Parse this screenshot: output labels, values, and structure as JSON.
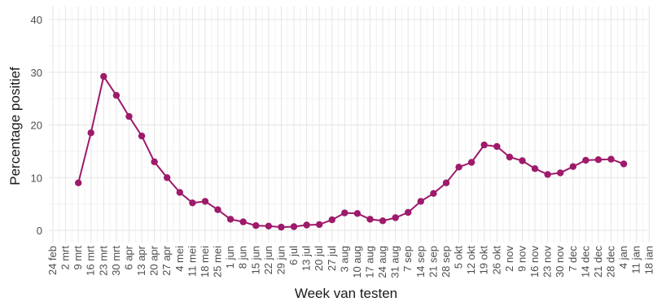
{
  "chart_data": {
    "type": "line",
    "title": "",
    "xlabel": "Week van testen",
    "ylabel": "Percentage positief",
    "ylim": [
      0,
      40
    ],
    "yticks": [
      0,
      10,
      20,
      30,
      40
    ],
    "grid": true,
    "legend": "none",
    "line_color": "#9e1a6a",
    "x_tick_labels": [
      "24 feb",
      "2 mrt",
      "9 mrt",
      "16 mrt",
      "23 mrt",
      "30 mrt",
      "6 apr",
      "13 apr",
      "20 apr",
      "27 apr",
      "4 mei",
      "11 mei",
      "18 mei",
      "25 mei",
      "1 jun",
      "8 jun",
      "15 jun",
      "22 jun",
      "29 jun",
      "6 jul",
      "13 jul",
      "20 jul",
      "27 jul",
      "3 aug",
      "10 aug",
      "17 aug",
      "24 aug",
      "31 aug",
      "7 sep",
      "14 sep",
      "21 sep",
      "28 sep",
      "5 okt",
      "12 okt",
      "19 okt",
      "26 okt",
      "2 nov",
      "9 nov",
      "16 nov",
      "23 nov",
      "30 nov",
      "7 dec",
      "14 dec",
      "21 dec",
      "28 dec",
      "4 jan",
      "11 jan",
      "18 jan"
    ],
    "series": [
      {
        "x": [
          "9 mrt",
          "16 mrt",
          "23 mrt",
          "30 mrt",
          "6 apr",
          "13 apr",
          "20 apr",
          "27 apr",
          "4 mei",
          "11 mei",
          "18 mei",
          "25 mei",
          "1 jun",
          "8 jun",
          "15 jun",
          "22 jun",
          "29 jun",
          "6 jul",
          "13 jul",
          "20 jul",
          "27 jul",
          "3 aug",
          "10 aug",
          "17 aug",
          "24 aug",
          "31 aug",
          "7 sep",
          "14 sep",
          "21 sep",
          "28 sep",
          "5 okt",
          "12 okt",
          "19 okt",
          "26 okt",
          "2 nov",
          "9 nov",
          "16 nov",
          "23 nov",
          "30 nov",
          "7 dec",
          "14 dec",
          "21 dec",
          "28 dec",
          "4 jan"
        ],
        "values": [
          9.0,
          18.5,
          29.2,
          25.6,
          21.6,
          17.9,
          13.0,
          10.0,
          7.2,
          5.2,
          5.5,
          3.9,
          2.1,
          1.6,
          0.9,
          0.8,
          0.6,
          0.7,
          1.0,
          1.1,
          2.0,
          3.3,
          3.2,
          2.1,
          1.8,
          2.4,
          3.4,
          5.5,
          7.0,
          9.0,
          12.0,
          12.9,
          16.2,
          15.9,
          13.9,
          13.2,
          11.7,
          10.6,
          10.9,
          12.1,
          13.3,
          13.4,
          13.5,
          12.6
        ]
      }
    ]
  }
}
